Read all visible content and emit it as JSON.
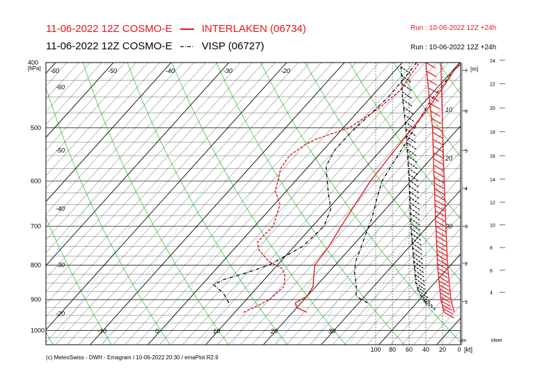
{
  "header": {
    "line1_prefix": "11-06-2022 12Z COSMO-E",
    "line1_station": "INTERLAKEN (06734)",
    "line1_run": "Run : 10-06-2022 12Z +24h",
    "line2_prefix": "11-06-2022 12Z COSMO-E",
    "line2_station": "VISP (06727)",
    "line2_run": "Run : 10-06-2022 12Z +24h"
  },
  "footer": "(c) MeteoSwiss - DWH - Emagram / 10-06-2022  20:30 / emaPlot R2.9",
  "colors": {
    "interlaken": "#e8141c",
    "visp": "#000000",
    "isotherm": "#000000",
    "dry_adiabat": "#38c838",
    "mixing_ratio": "#66d0e8",
    "grid": "#000000"
  },
  "chart_data": {
    "type": "line",
    "subtype": "emagram (skew-T / log-p)",
    "y_axis": {
      "unit": "[hPa]",
      "scale": "log",
      "range": [
        400,
        1050
      ],
      "tick_labels": [
        "400",
        "500",
        "600",
        "700",
        "800",
        "900",
        "1000"
      ]
    },
    "isotherm_labels_top": [
      "-60",
      "-50",
      "-40",
      "-30",
      "-20"
    ],
    "isotherm_labels_left": [
      "-60",
      "-50",
      "-40",
      "-30",
      "-20"
    ],
    "isotherm_labels_bottom": [
      "-10",
      "0",
      "10",
      "20",
      "30"
    ],
    "isotherm_labels_right": [
      "10",
      "20",
      "30"
    ],
    "km_axis": {
      "title": "[m]",
      "bottom_label": "km",
      "ticks": [
        {
          "km": 1,
          "p": 906
        },
        {
          "km": 2,
          "p": 795
        },
        {
          "km": 3,
          "p": 700
        },
        {
          "km": 4,
          "p": 615
        },
        {
          "km": 5,
          "p": 540
        },
        {
          "km": 6,
          "p": 472
        },
        {
          "km": 7,
          "p": 411
        }
      ]
    },
    "kfeet_axis": {
      "bottom_label": "kfeet",
      "ticks": [
        {
          "kft": 4,
          "p": 878
        },
        {
          "kft": 6,
          "p": 814
        },
        {
          "kft": 8,
          "p": 753
        },
        {
          "kft": 10,
          "p": 697
        },
        {
          "kft": 12,
          "p": 645
        },
        {
          "kft": 14,
          "p": 596
        },
        {
          "kft": 16,
          "p": 550
        },
        {
          "kft": 18,
          "p": 507
        },
        {
          "kft": 20,
          "p": 467
        },
        {
          "kft": 22,
          "p": 430
        },
        {
          "kft": 24,
          "p": 397
        }
      ]
    },
    "wind_axis": {
      "unit": "[kt]",
      "tick_labels": [
        "100",
        "80",
        "60",
        "40",
        "20",
        "0"
      ]
    },
    "series": [
      {
        "name": "INTERLAKEN (06734)",
        "color": "#e8141c",
        "style": "solid",
        "temperature": [
          [
            940,
            22.5
          ],
          [
            925,
            20.0
          ],
          [
            910,
            19.0
          ],
          [
            890,
            20.0
          ],
          [
            860,
            19.5
          ],
          [
            830,
            18.0
          ],
          [
            800,
            16.5
          ],
          [
            750,
            16.0
          ],
          [
            700,
            15.0
          ],
          [
            650,
            14.0
          ],
          [
            600,
            13.0
          ],
          [
            550,
            12.5
          ],
          [
            500,
            12.0
          ],
          [
            460,
            11.5
          ],
          [
            430,
            10.8
          ],
          [
            410,
            10.2
          ],
          [
            400,
            10.5
          ]
        ],
        "dewpoint": [
          [
            940,
            11.5
          ],
          [
            925,
            12.5
          ],
          [
            900,
            14.0
          ],
          [
            860,
            14.5
          ],
          [
            830,
            13.0
          ],
          [
            810,
            11.5
          ],
          [
            790,
            8.0
          ],
          [
            760,
            4.5
          ],
          [
            740,
            3.0
          ],
          [
            720,
            3.0
          ],
          [
            700,
            3.2
          ],
          [
            650,
            1.0
          ],
          [
            620,
            -2.0
          ],
          [
            600,
            -3.0
          ],
          [
            575,
            -4.5
          ],
          [
            550,
            -5.0
          ],
          [
            530,
            -4.0
          ],
          [
            520,
            -3.0
          ],
          [
            500,
            1.0
          ],
          [
            470,
            3.0
          ],
          [
            440,
            4.0
          ],
          [
            420,
            3.5
          ],
          [
            400,
            3.0
          ]
        ],
        "wind_speed": [
          [
            940,
            18
          ],
          [
            900,
            22
          ],
          [
            850,
            24
          ],
          [
            800,
            26
          ],
          [
            700,
            28
          ],
          [
            600,
            30
          ],
          [
            500,
            32
          ],
          [
            450,
            36
          ],
          [
            400,
            40
          ]
        ],
        "wind_speed_b": [
          [
            940,
            6
          ],
          [
            900,
            10
          ],
          [
            850,
            12
          ],
          [
            800,
            14
          ],
          [
            700,
            16
          ],
          [
            600,
            18
          ],
          [
            500,
            20
          ],
          [
            400,
            22
          ]
        ]
      },
      {
        "name": "VISP (06727)",
        "color": "#000000",
        "style": "dash-dot",
        "temperature": [
          [
            910,
            31.5
          ],
          [
            890,
            28.5
          ],
          [
            860,
            27.0
          ],
          [
            820,
            24.5
          ],
          [
            790,
            23.0
          ],
          [
            760,
            22.0
          ],
          [
            720,
            20.5
          ],
          [
            680,
            19.0
          ],
          [
            640,
            17.0
          ],
          [
            600,
            15.0
          ],
          [
            560,
            14.0
          ],
          [
            520,
            13.0
          ],
          [
            490,
            12.0
          ],
          [
            460,
            11.0
          ],
          [
            430,
            10.5
          ],
          [
            400,
            10.0
          ]
        ],
        "dewpoint": [
          [
            910,
            7.5
          ],
          [
            880,
            5.0
          ],
          [
            855,
            2.0
          ],
          [
            840,
            3.0
          ],
          [
            820,
            6.0
          ],
          [
            800,
            8.5
          ],
          [
            775,
            10.0
          ],
          [
            750,
            11.5
          ],
          [
            700,
            12.0
          ],
          [
            660,
            10.5
          ],
          [
            630,
            8.0
          ],
          [
            600,
            5.5
          ],
          [
            570,
            3.0
          ],
          [
            540,
            2.0
          ],
          [
            510,
            2.0
          ],
          [
            480,
            2.5
          ],
          [
            450,
            3.0
          ],
          [
            420,
            2.8
          ],
          [
            400,
            2.5
          ]
        ],
        "wind_speed": [
          [
            910,
            40
          ],
          [
            880,
            48
          ],
          [
            850,
            52
          ],
          [
            800,
            54
          ],
          [
            750,
            56
          ],
          [
            700,
            58
          ],
          [
            600,
            60
          ],
          [
            500,
            64
          ],
          [
            450,
            68
          ],
          [
            400,
            70
          ]
        ]
      }
    ]
  }
}
